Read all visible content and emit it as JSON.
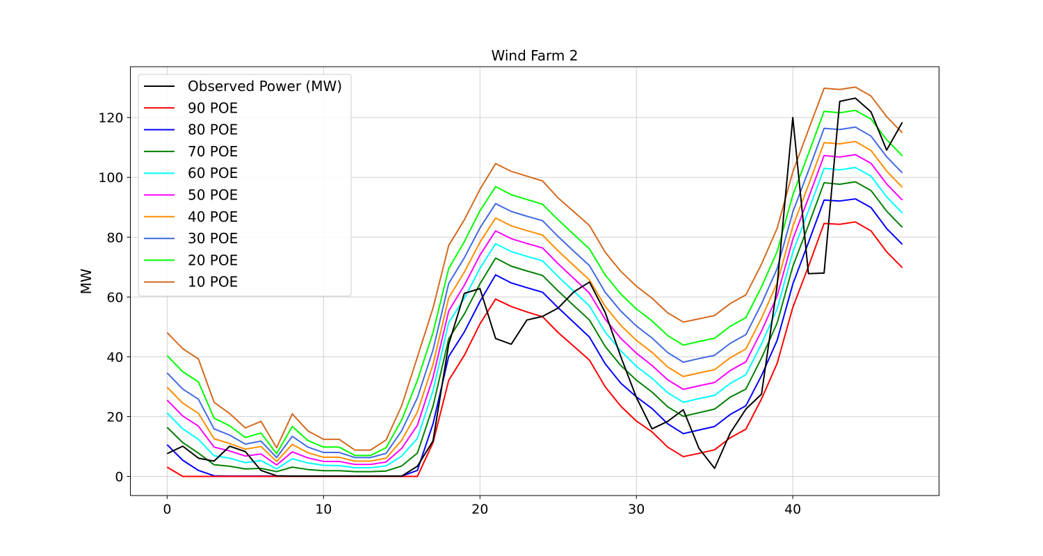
{
  "chart_data": {
    "type": "line",
    "title": "Wind Farm 2",
    "xlabel": "",
    "ylabel": "MW",
    "xlim": [
      -2.35,
      49.35
    ],
    "ylim": [
      -6.4,
      137.0
    ],
    "xticks": [
      0,
      10,
      20,
      30,
      40
    ],
    "yticks": [
      0,
      20,
      40,
      60,
      80,
      100,
      120
    ],
    "grid": true,
    "legend_position": "upper-left",
    "x": [
      0,
      1,
      2,
      3,
      4,
      5,
      6,
      7,
      8,
      9,
      10,
      11,
      12,
      13,
      14,
      15,
      16,
      17,
      18,
      19,
      20,
      21,
      22,
      23,
      24,
      25,
      26,
      27,
      28,
      29,
      30,
      31,
      32,
      33,
      34,
      35,
      36,
      37,
      38,
      39,
      40,
      41,
      42,
      43,
      44,
      45,
      46,
      47
    ],
    "series": [
      {
        "name": "Observed Power (MW)",
        "color": "#000000",
        "values": [
          7.6,
          10.1,
          6.1,
          5.1,
          10.1,
          8.3,
          2.0,
          0.2,
          0.1,
          0.1,
          0.1,
          0.1,
          0.1,
          0.1,
          0.1,
          0.1,
          3.4,
          11.9,
          44.2,
          61.2,
          62.8,
          46.1,
          44.2,
          52.3,
          53.5,
          56.3,
          61.7,
          65.0,
          54.9,
          40.1,
          26.4,
          15.9,
          18.4,
          22.3,
          9.4,
          2.7,
          14.5,
          22.5,
          27.5,
          63.9,
          120.0,
          67.8,
          68.0,
          125.4,
          126.5,
          121.9,
          109.1,
          118.4
        ]
      },
      {
        "name": "90 POE",
        "color": "#ff0000",
        "values": [
          3.1,
          0.0,
          0.0,
          0.0,
          0.0,
          0.0,
          0.0,
          0.0,
          0.0,
          0.0,
          0.0,
          0.0,
          0.0,
          0.0,
          0.0,
          0.0,
          0.0,
          11.3,
          32.1,
          40.5,
          51.0,
          59.3,
          56.8,
          55.0,
          53.4,
          48.1,
          43.5,
          38.9,
          30.0,
          23.5,
          18.5,
          14.9,
          9.8,
          6.6,
          7.7,
          8.9,
          12.9,
          15.8,
          25.9,
          37.8,
          56.5,
          70.2,
          84.6,
          84.3,
          85.1,
          82.1,
          75.1,
          69.8
        ]
      },
      {
        "name": "80 POE",
        "color": "#0000ff",
        "values": [
          10.6,
          5.4,
          2.0,
          0.2,
          0.1,
          0.1,
          0.1,
          0.1,
          0.1,
          0.1,
          0.1,
          0.1,
          0.1,
          0.1,
          0.1,
          0.1,
          2.0,
          17.6,
          40.1,
          48.3,
          58.5,
          67.4,
          64.7,
          63.1,
          61.6,
          56.4,
          51.5,
          46.6,
          37.7,
          31.2,
          26.6,
          22.7,
          17.6,
          14.3,
          15.5,
          16.7,
          20.7,
          23.6,
          33.7,
          45.5,
          64.3,
          78.2,
          92.4,
          92.1,
          92.8,
          89.9,
          82.9,
          77.6
        ]
      },
      {
        "name": "70 POE",
        "color": "#008000",
        "values": [
          16.4,
          11.3,
          7.8,
          3.9,
          3.4,
          2.5,
          2.7,
          1.6,
          3.1,
          2.3,
          1.9,
          1.9,
          1.6,
          1.6,
          1.8,
          3.5,
          7.8,
          23.5,
          46.0,
          54.3,
          64.4,
          73.0,
          70.3,
          68.7,
          67.2,
          62.0,
          57.1,
          52.3,
          43.5,
          37.1,
          32.2,
          28.2,
          23.3,
          20.1,
          21.3,
          22.5,
          26.5,
          29.2,
          39.6,
          51.3,
          70.2,
          84.0,
          98.2,
          97.7,
          98.5,
          95.6,
          88.7,
          83.3
        ]
      },
      {
        "name": "60 POE",
        "color": "#00ffff",
        "values": [
          21.2,
          15.9,
          12.4,
          6.9,
          6.1,
          4.6,
          5.3,
          2.5,
          5.9,
          4.5,
          3.7,
          3.6,
          2.9,
          2.9,
          3.5,
          6.8,
          12.7,
          28.7,
          51.4,
          59.5,
          69.6,
          77.8,
          75.2,
          73.6,
          72.1,
          66.8,
          61.9,
          57.0,
          48.3,
          42.0,
          36.8,
          32.8,
          28.0,
          24.8,
          26.0,
          27.1,
          31.1,
          34.0,
          44.3,
          56.0,
          75.0,
          88.8,
          103.0,
          102.5,
          103.3,
          100.4,
          93.5,
          88.1
        ]
      },
      {
        "name": "50 POE",
        "color": "#ff00ff",
        "values": [
          25.5,
          20.2,
          16.8,
          9.8,
          8.5,
          6.8,
          7.5,
          3.8,
          8.2,
          6.2,
          5.0,
          5.0,
          4.0,
          4.0,
          4.8,
          9.4,
          17.1,
          33.1,
          55.3,
          63.9,
          74.0,
          82.1,
          79.5,
          77.9,
          76.4,
          71.1,
          66.2,
          61.3,
          52.6,
          46.2,
          41.2,
          37.1,
          32.3,
          29.1,
          30.3,
          31.4,
          35.4,
          38.3,
          48.6,
          60.3,
          79.3,
          93.1,
          107.3,
          106.8,
          107.6,
          104.7,
          97.8,
          92.4
        ]
      },
      {
        "name": "40 POE",
        "color": "#ff8c00",
        "values": [
          29.8,
          24.5,
          21.1,
          12.6,
          11.0,
          9.1,
          10.0,
          5.0,
          10.7,
          7.9,
          6.4,
          6.4,
          5.1,
          5.1,
          6.1,
          12.1,
          21.5,
          37.5,
          59.7,
          68.3,
          78.3,
          86.4,
          83.8,
          82.2,
          80.7,
          75.4,
          70.5,
          65.7,
          56.9,
          50.5,
          45.5,
          41.5,
          36.6,
          33.4,
          34.6,
          35.7,
          39.7,
          42.6,
          52.9,
          64.7,
          83.6,
          97.4,
          111.6,
          111.2,
          112.0,
          109.0,
          102.1,
          96.7
        ]
      },
      {
        "name": "30 POE",
        "color": "#4169e1",
        "values": [
          34.6,
          29.2,
          25.8,
          15.9,
          13.8,
          10.8,
          11.8,
          6.3,
          13.4,
          9.8,
          8.0,
          8.0,
          6.3,
          6.3,
          7.7,
          15.3,
          26.3,
          42.3,
          64.5,
          73.1,
          83.1,
          91.2,
          88.6,
          87.0,
          85.5,
          80.2,
          75.3,
          70.5,
          61.6,
          55.3,
          50.3,
          46.3,
          41.4,
          38.2,
          39.4,
          40.5,
          44.5,
          47.4,
          57.7,
          69.5,
          88.4,
          102.2,
          116.4,
          116.0,
          116.8,
          113.8,
          106.9,
          101.5
        ]
      },
      {
        "name": "20 POE",
        "color": "#00ff00",
        "values": [
          40.4,
          35.0,
          31.6,
          19.5,
          16.9,
          13.0,
          14.5,
          7.6,
          16.7,
          12.0,
          9.8,
          9.8,
          7.0,
          7.0,
          9.6,
          18.9,
          32.1,
          48.1,
          69.5,
          78.5,
          88.8,
          96.9,
          94.2,
          92.6,
          91.0,
          85.8,
          80.9,
          76.1,
          67.4,
          61.0,
          56.0,
          52.0,
          47.1,
          43.9,
          45.1,
          46.2,
          50.2,
          53.1,
          63.4,
          75.2,
          94.1,
          107.9,
          122.1,
          121.6,
          122.4,
          119.5,
          112.6,
          107.2
        ]
      },
      {
        "name": "10 POE",
        "color": "#d2691e",
        "values": [
          48.1,
          42.7,
          39.3,
          24.8,
          21.0,
          16.2,
          18.4,
          9.6,
          20.9,
          15.2,
          12.4,
          12.4,
          8.8,
          8.8,
          12.2,
          23.7,
          39.9,
          56.3,
          77.2,
          85.8,
          96.0,
          104.6,
          102.0,
          100.4,
          98.8,
          93.1,
          88.5,
          83.9,
          75.0,
          68.6,
          63.6,
          59.6,
          54.7,
          51.6,
          52.7,
          53.8,
          57.8,
          60.7,
          71.0,
          83.0,
          101.8,
          115.9,
          129.8,
          129.4,
          130.2,
          127.2,
          120.3,
          114.9
        ]
      }
    ]
  }
}
